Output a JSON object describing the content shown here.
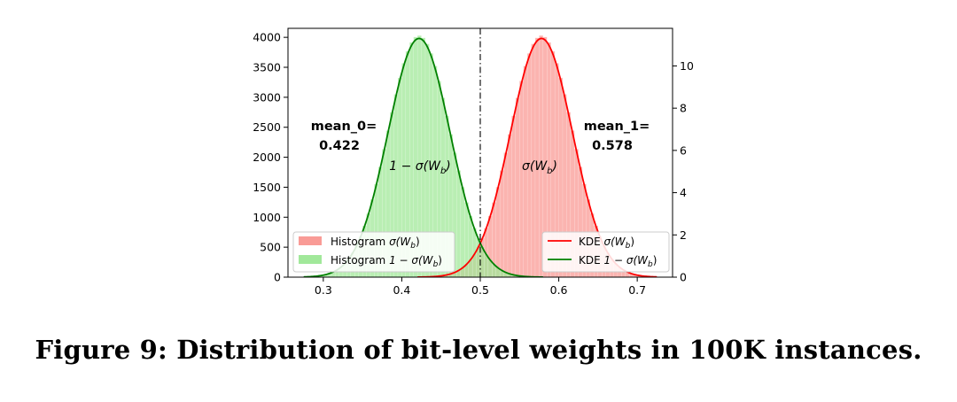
{
  "caption": "Figure 9: Distribution of bit-level weights in 100K instances.",
  "chart_data": {
    "type": "histogram+kde",
    "title": "",
    "xlabel": "",
    "ylabel": "",
    "xlim": [
      0.255,
      0.745
    ],
    "ylim_left": [
      0,
      4150
    ],
    "ylim_right": [
      0,
      11.78
    ],
    "x_ticks": [
      "0.3",
      "0.4",
      "0.5",
      "0.6",
      "0.7"
    ],
    "x_tick_values": [
      0.3,
      0.4,
      0.5,
      0.6,
      0.7
    ],
    "y_ticks_left": [
      "0",
      "500",
      "1000",
      "1500",
      "2000",
      "2500",
      "3000",
      "3500",
      "4000"
    ],
    "y_tick_left_values": [
      0,
      500,
      1000,
      1500,
      2000,
      2500,
      3000,
      3500,
      4000
    ],
    "y_ticks_right": [
      "0",
      "2",
      "4",
      "6",
      "8",
      "10"
    ],
    "y_tick_right_values": [
      0,
      2,
      4,
      6,
      8,
      10
    ],
    "vline": {
      "x": 0.5,
      "style": "dash-dot",
      "color": "#000000"
    },
    "series": [
      {
        "name": "Histogram σ(Wb)",
        "label_main": "Histogram ",
        "label_math": "σ(W",
        "label_sub": "b",
        "label_end": ")",
        "kind": "histogram",
        "mean": 0.578,
        "sd": 0.0395,
        "peak": 4030,
        "x_range": [
          0.42,
          0.725
        ],
        "bin_width": 0.005,
        "color": "#f99b96"
      },
      {
        "name": "Histogram 1 − σ(Wb)",
        "label_main": "Histogram ",
        "label_math": "1 − σ(W",
        "label_sub": "b",
        "label_end": ")",
        "kind": "histogram",
        "mean": 0.422,
        "sd": 0.0395,
        "peak": 4030,
        "x_range": [
          0.275,
          0.58
        ],
        "bin_width": 0.005,
        "color": "#a1e89a"
      },
      {
        "name": "KDE σ(Wb)",
        "label_main": "KDE ",
        "label_math": "σ(W",
        "label_sub": "b",
        "label_end": ")",
        "kind": "kde",
        "mean": 0.578,
        "sd": 0.0395,
        "peak": 11.3,
        "x_range": [
          0.42,
          0.725
        ],
        "color": "#ff0000"
      },
      {
        "name": "KDE 1 − σ(Wb)",
        "label_main": "KDE ",
        "label_math": "1 − σ(W",
        "label_sub": "b",
        "label_end": ")",
        "kind": "kde",
        "mean": 0.422,
        "sd": 0.0395,
        "peak": 11.3,
        "x_range": [
          0.275,
          0.58
        ],
        "color": "#008000"
      }
    ],
    "annotations": {
      "mean0_label": "mean_0=",
      "mean0_value": "0.422",
      "mean1_label": "mean_1=",
      "mean1_value": "0.578",
      "curve_label_left_pre": "1 − σ(W",
      "curve_label_left_sub": "b",
      "curve_label_left_post": ")",
      "curve_label_right_pre": "σ(W",
      "curve_label_right_sub": "b",
      "curve_label_right_post": ")"
    },
    "legend_left_placement": "lower-left",
    "legend_right_placement": "lower-right"
  }
}
